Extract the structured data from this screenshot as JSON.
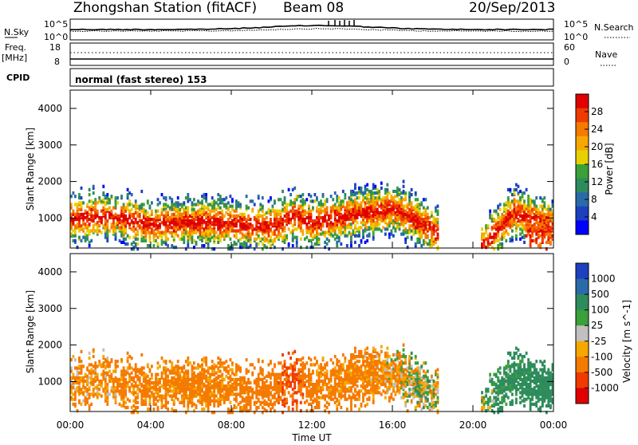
{
  "header": {
    "title": "Zhongshan Station (fitACF)",
    "beam": "Beam 08",
    "date": "20/Sep/2013"
  },
  "strips": {
    "nsky": {
      "label": "N.Sky",
      "left_ticks": [
        "10^5",
        "10^0"
      ],
      "right_ticks": [
        "10^5",
        "10^0"
      ],
      "right_label": "N.Search"
    },
    "freq": {
      "label_top": "Freq.",
      "label_unit": "[MHz]",
      "left_ticks": [
        "18",
        "8"
      ],
      "right_ticks": [
        "60",
        "0"
      ],
      "right_label": "Nave"
    },
    "cpid": {
      "label": "CPID",
      "mode_text": "normal (fast stereo) 153"
    }
  },
  "chart_data": [
    {
      "type": "heatmap",
      "panel": "power",
      "ylabel": "Slant Range [km]",
      "xlabel": "",
      "ylim": [
        180,
        4500
      ],
      "yticks": [
        "4000",
        "3000",
        "2000",
        "1000"
      ],
      "colorbar": {
        "label": "Power [dB]",
        "ticks": [
          "28",
          "24",
          "20",
          "16",
          "12",
          "8",
          "4"
        ],
        "colors": [
          "#e00000",
          "#f03a00",
          "#f57a00",
          "#f6a800",
          "#e8d000",
          "#3aa03a",
          "#2e8c5c",
          "#2a6aa8",
          "#1d40c0",
          "#0000ff"
        ]
      },
      "series": [
        {
          "x": [
            0.0,
            2.0,
            4.0,
            6.0,
            8.0,
            10.0,
            11.0,
            12.0,
            14.0,
            16.0,
            17.0,
            18.0,
            20.0,
            22.0,
            24.0
          ],
          "values": [
            1050,
            1100,
            850,
            950,
            900,
            800,
            1100,
            900,
            1150,
            1300,
            1050,
            700,
            0,
            1200,
            800
          ]
        }
      ]
    },
    {
      "type": "heatmap",
      "panel": "velocity",
      "ylabel": "Slant Range [km]",
      "xlabel": "Time UT",
      "ylim": [
        180,
        4500
      ],
      "yticks": [
        "4000",
        "3000",
        "2000",
        "1000"
      ],
      "xticks": [
        "00:00",
        "04:00",
        "08:00",
        "12:00",
        "16:00",
        "20:00",
        "00:00"
      ],
      "colorbar": {
        "label": "Velocity [m s^-1]",
        "ticks": [
          "1000",
          "500",
          "100",
          "25",
          "-25",
          "-100",
          "-500",
          "-1000"
        ],
        "colors": [
          "#1d40c0",
          "#2a6aa8",
          "#2e8c5c",
          "#3aa03a",
          "#c0c0c0",
          "#f6a800",
          "#f57a00",
          "#f03a00",
          "#e00000"
        ]
      },
      "series": [
        {
          "x": [
            0.0,
            2.0,
            4.0,
            6.0,
            8.0,
            10.0,
            11.0,
            12.0,
            14.0,
            16.0,
            17.0,
            18.0,
            20.0,
            22.0,
            24.0
          ],
          "values": [
            -150,
            -150,
            -200,
            -200,
            -200,
            -300,
            -600,
            -200,
            -200,
            -100,
            0,
            0,
            0,
            200,
            300
          ]
        }
      ]
    }
  ]
}
